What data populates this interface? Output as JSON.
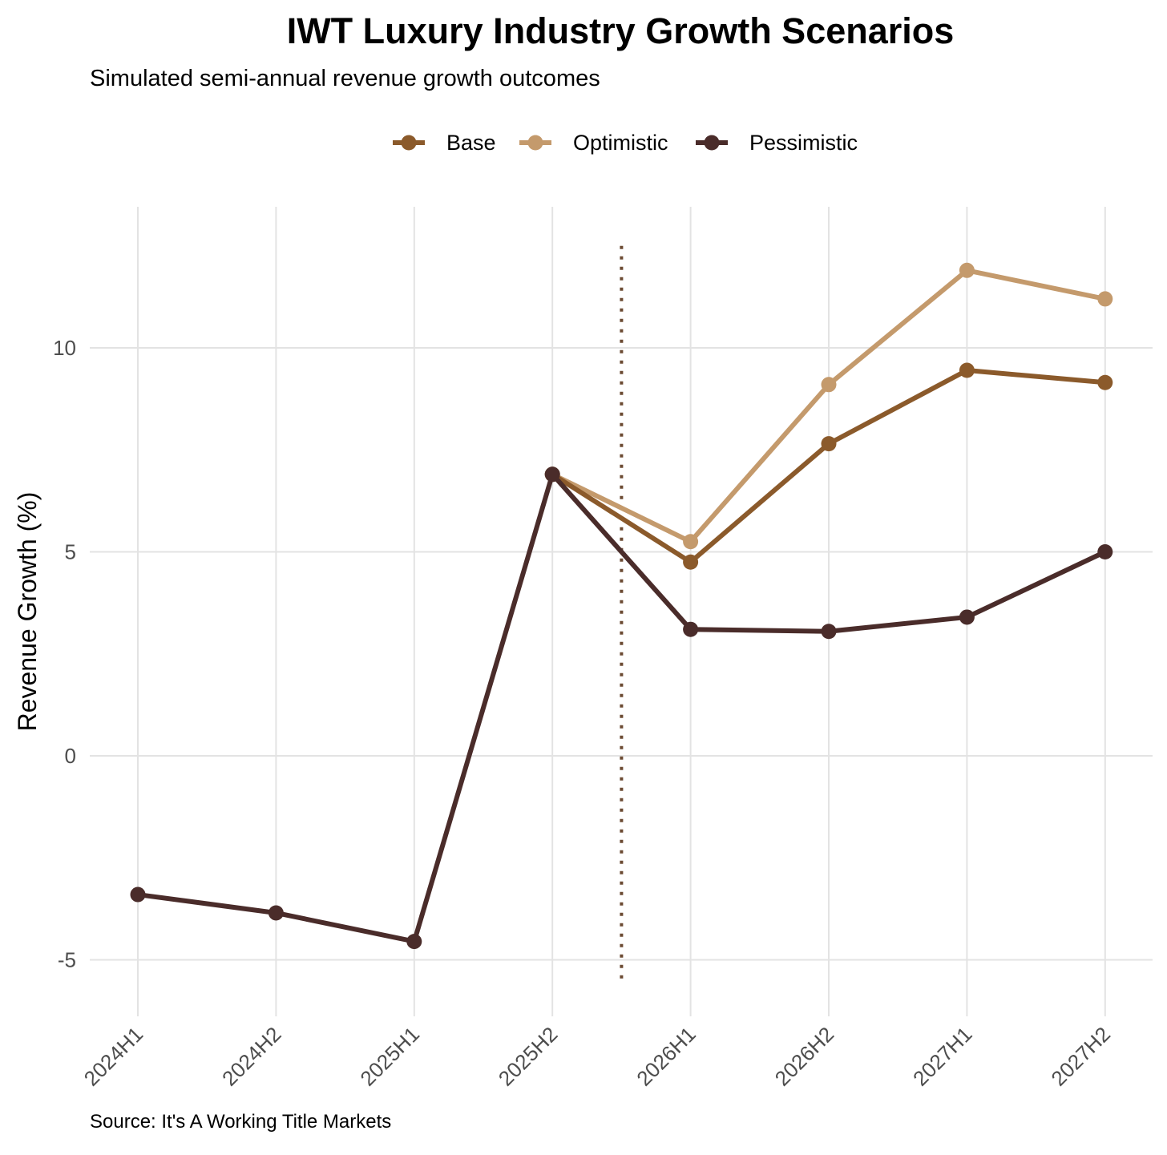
{
  "chart_data": {
    "type": "line",
    "title": "IWT Luxury Industry Growth Scenarios",
    "subtitle": "Simulated semi-annual revenue growth outcomes",
    "caption": "Source: It's A Working Title Markets",
    "xlabel": "",
    "ylabel": "Revenue Growth (%)",
    "categories": [
      "2024H1",
      "2024H2",
      "2025H1",
      "2025H2",
      "2026H1",
      "2026H2",
      "2027H1",
      "2027H2"
    ],
    "ylim": [
      -6.3,
      13.4
    ],
    "yticks": [
      -5,
      0,
      5,
      10
    ],
    "ytick_labels": [
      "-5",
      "0",
      "5",
      "10"
    ],
    "grid": true,
    "legend_position": "top",
    "divider": {
      "x_between": [
        "2025H2",
        "2026H1"
      ],
      "y_range": [
        -5.5,
        12.5
      ],
      "style": "dotted",
      "color": "#6b4a32"
    },
    "series": [
      {
        "name": "Base",
        "color": "#8b5a2b",
        "values": [
          null,
          null,
          null,
          6.9,
          4.75,
          7.65,
          9.45,
          9.15
        ]
      },
      {
        "name": "Optimistic",
        "color": "#c49a6c",
        "values": [
          null,
          null,
          null,
          6.9,
          5.25,
          9.1,
          11.9,
          11.2
        ]
      },
      {
        "name": "Pessimistic",
        "color": "#4a2c2a",
        "values": [
          -3.4,
          -3.85,
          -4.55,
          6.9,
          3.1,
          3.05,
          3.4,
          5.0
        ]
      }
    ]
  }
}
